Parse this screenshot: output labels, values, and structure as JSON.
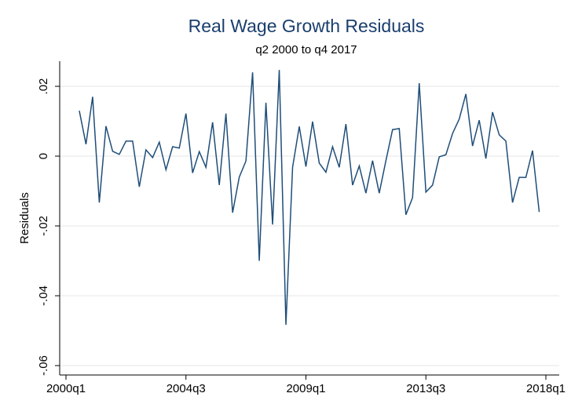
{
  "chart_data": {
    "type": "line",
    "title": "Real Wage Growth Residuals",
    "subtitle": "q2 2000 to q4 2017",
    "y_label": "Residuals",
    "x": [
      "2000q3",
      "2000q4",
      "2001q1",
      "2001q2",
      "2001q3",
      "2001q4",
      "2002q1",
      "2002q2",
      "2002q3",
      "2002q4",
      "2003q1",
      "2003q2",
      "2003q3",
      "2003q4",
      "2004q1",
      "2004q2",
      "2004q3",
      "2004q4",
      "2005q1",
      "2005q2",
      "2005q3",
      "2005q4",
      "2006q1",
      "2006q2",
      "2006q3",
      "2006q4",
      "2007q1",
      "2007q2",
      "2007q3",
      "2007q4",
      "2008q1",
      "2008q2",
      "2008q3",
      "2008q4",
      "2009q1",
      "2009q2",
      "2009q3",
      "2009q4",
      "2010q1",
      "2010q2",
      "2010q3",
      "2010q4",
      "2011q1",
      "2011q2",
      "2011q3",
      "2011q4",
      "2012q1",
      "2012q2",
      "2012q3",
      "2012q4",
      "2013q1",
      "2013q2",
      "2013q3",
      "2013q4",
      "2014q1",
      "2014q2",
      "2014q3",
      "2014q4",
      "2015q1",
      "2015q2",
      "2015q3",
      "2015q4",
      "2016q1",
      "2016q2",
      "2016q3",
      "2016q4",
      "2017q1",
      "2017q2",
      "2017q3",
      "2017q4"
    ],
    "series": [
      {
        "name": "Residuals",
        "color": "#1f4e79",
        "values": [
          0.013,
          0.0034,
          0.017,
          -0.0133,
          0.0086,
          0.0014,
          0.0005,
          0.0043,
          0.0043,
          -0.0088,
          0.0018,
          -0.0004,
          0.004,
          -0.0039,
          0.0027,
          0.0023,
          0.0122,
          -0.0048,
          0.0013,
          -0.0032,
          0.0097,
          -0.0083,
          0.0122,
          -0.0162,
          -0.006,
          -0.0014,
          0.024,
          -0.03,
          0.0153,
          -0.0196,
          0.0247,
          -0.0483,
          -0.0032,
          0.0085,
          -0.003,
          0.0099,
          -0.002,
          -0.0046,
          0.0027,
          -0.0032,
          0.0092,
          -0.0083,
          -0.0028,
          -0.0106,
          -0.0013,
          -0.0106,
          -0.0013,
          0.0076,
          0.0079,
          -0.0168,
          -0.0119,
          0.0209,
          -0.0103,
          -0.0083,
          -0.0002,
          0.0004,
          0.0065,
          0.0106,
          0.0178,
          0.0029,
          0.0103,
          -0.0007,
          0.0126,
          0.0061,
          0.0043,
          -0.0133,
          -0.0061,
          -0.0061,
          0.0016,
          -0.016
        ]
      }
    ],
    "xlim": [
      "2000q1",
      "2018q1"
    ],
    "xticks": [
      "2000q1",
      "2004q3",
      "2009q1",
      "2013q3",
      "2018q1"
    ],
    "ylim": [
      -0.0627,
      0.0272
    ],
    "yticks": [
      {
        "value": 0.02,
        "label": ".02"
      },
      {
        "value": 0,
        "label": "0"
      },
      {
        "value": -0.02,
        "label": "-.02"
      },
      {
        "value": -0.04,
        "label": "-.04"
      },
      {
        "value": -0.06,
        "label": "-.06"
      }
    ],
    "grid": true
  }
}
